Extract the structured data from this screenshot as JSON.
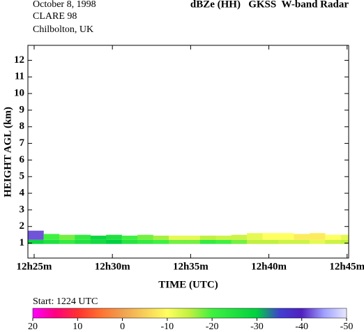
{
  "chart_data": {
    "type": "time-height",
    "header_left": [
      "October  8, 1998",
      "CLARE 98",
      "Chilbolton, UK"
    ],
    "title": "dBZe (HH)   GKSS  W-band Radar",
    "x_label": "TIME (UTC)",
    "y_label": "HEIGHT AGL (km)",
    "xlim": [
      24.6,
      45.1
    ],
    "xticks": [
      {
        "value": 25,
        "label": "12h25m"
      },
      {
        "value": 30,
        "label": "12h30m"
      },
      {
        "value": 35,
        "label": "12h35m"
      },
      {
        "value": 40,
        "label": "12h40m"
      },
      {
        "value": 45,
        "label": "12h45m"
      }
    ],
    "ylim": [
      0.1,
      12.9
    ],
    "yticks": [
      1,
      2,
      3,
      4,
      5,
      6,
      7,
      8,
      9,
      10,
      11,
      12
    ],
    "echo": {
      "base": 0.95,
      "split": 1.2,
      "times": [
        24.6,
        25.6,
        26.6,
        27.6,
        28.6,
        29.6,
        30.6,
        31.6,
        32.6,
        33.6,
        34.6,
        35.6,
        36.6,
        37.6,
        38.6,
        39.6,
        40.6,
        41.6,
        42.6,
        43.6,
        44.6
      ],
      "top": [
        1.75,
        1.55,
        1.5,
        1.5,
        1.45,
        1.5,
        1.45,
        1.5,
        1.45,
        1.45,
        1.45,
        1.45,
        1.45,
        1.5,
        1.6,
        1.6,
        1.6,
        1.55,
        1.6,
        1.5,
        1.5
      ],
      "lower_dbze": [
        -28,
        -25,
        -22,
        -25,
        -27,
        -30,
        -24,
        -22,
        -20,
        -18,
        -18,
        -22,
        -20,
        -18,
        -15,
        -15,
        -14,
        -14,
        -12,
        -14,
        -15
      ],
      "upper_dbze": [
        -42,
        -20,
        -18,
        -22,
        -28,
        -25,
        -20,
        -18,
        -16,
        -12,
        -12,
        -15,
        -14,
        -14,
        -12,
        -10,
        -10,
        -8,
        -8,
        -10,
        -12
      ]
    },
    "colorbar": {
      "caption": "Start: 1224 UTC",
      "clim": [
        20,
        -50
      ],
      "ticks": [
        20,
        10,
        0,
        -10,
        -20,
        -30,
        -40,
        -50
      ],
      "stops": [
        {
          "value": 20,
          "color": "#ff00ff"
        },
        {
          "value": 15,
          "color": "#ff0080"
        },
        {
          "value": 10,
          "color": "#ff3030"
        },
        {
          "value": 5,
          "color": "#ff7030"
        },
        {
          "value": 0,
          "color": "#f0a050"
        },
        {
          "value": -10,
          "color": "#ffff60"
        },
        {
          "value": -15,
          "color": "#c0f040"
        },
        {
          "value": -20,
          "color": "#40f040"
        },
        {
          "value": -30,
          "color": "#00d040"
        },
        {
          "value": -35,
          "color": "#4040d0"
        },
        {
          "value": -40,
          "color": "#5020c0"
        },
        {
          "value": -45,
          "color": "#a0a0ff"
        },
        {
          "value": -50,
          "color": "#e8e8ff"
        }
      ]
    }
  }
}
